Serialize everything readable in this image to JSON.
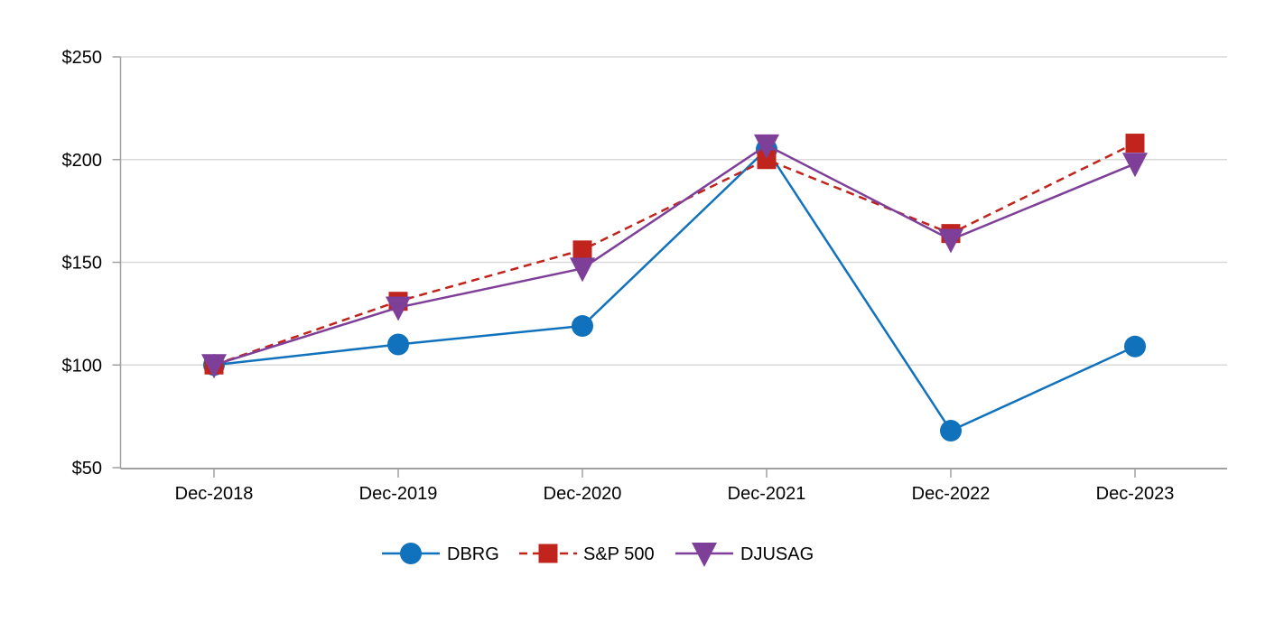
{
  "chart_data": {
    "type": "line",
    "title": "",
    "categories": [
      "Dec-2018",
      "Dec-2019",
      "Dec-2020",
      "Dec-2021",
      "Dec-2022",
      "Dec-2023"
    ],
    "x": [
      0,
      1,
      2,
      3,
      4,
      5
    ],
    "ylim": [
      50,
      250
    ],
    "y_ticks": [
      {
        "value": 250,
        "label": "$250"
      },
      {
        "value": 200,
        "label": "$200"
      },
      {
        "value": 150,
        "label": "$150"
      },
      {
        "value": 100,
        "label": "$100"
      },
      {
        "value": 50,
        "label": "$50"
      }
    ],
    "grid": "horizontal-on",
    "legend_position": "bottom",
    "series": [
      {
        "name": "DBRG",
        "color": "#1071BC",
        "line_style": "solid",
        "marker": "circle",
        "values": [
          100,
          110,
          119,
          205,
          68,
          109
        ]
      },
      {
        "name": "S&P 500",
        "color": "#C0241C",
        "line_style": "dashed",
        "marker": "square",
        "values": [
          100,
          131,
          156,
          200,
          164,
          208
        ]
      },
      {
        "name": "DJUSAG",
        "color": "#7E3F98",
        "line_style": "solid",
        "marker": "triangle-down",
        "values": [
          100,
          128,
          147,
          207,
          161,
          198
        ]
      }
    ],
    "colors": {
      "axis": "#A0A0A0",
      "gridline": "#D9D9D9",
      "text": "#000000",
      "background": "#FFFFFF"
    }
  }
}
